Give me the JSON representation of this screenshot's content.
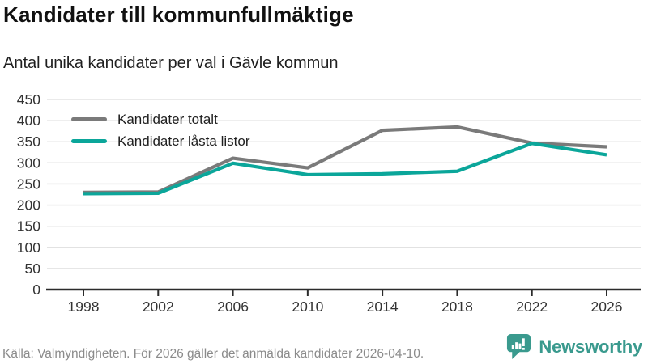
{
  "header": {
    "title": "Kandidater till kommunfullmäktige",
    "subtitle": "Antal unika kandidater per val i Gävle kommun"
  },
  "chart_data": {
    "type": "line",
    "title": "Kandidater till kommunfullmäktige",
    "subtitle": "Antal unika kandidater per val i Gävle kommun",
    "categories": [
      "1998",
      "2002",
      "2006",
      "2010",
      "2014",
      "2018",
      "2022",
      "2026"
    ],
    "series": [
      {
        "name": "Kandidater totalt",
        "color": "#7a7a7a",
        "values": [
          230,
          231,
          311,
          288,
          377,
          385,
          347,
          338
        ]
      },
      {
        "name": "Kandidater låsta listor",
        "color": "#0ba69a",
        "values": [
          227,
          228,
          299,
          272,
          274,
          280,
          346,
          319
        ]
      }
    ],
    "xlabel": "",
    "ylabel": "",
    "ylim": [
      0,
      450
    ],
    "yticks": [
      0,
      50,
      100,
      150,
      200,
      250,
      300,
      350,
      400,
      450
    ],
    "grid": true,
    "legend_position": "top-left-inside"
  },
  "colors": {
    "grid": "#dedede",
    "axis": "#2b2b2b",
    "tick_label": "#333333",
    "series_total": "#7a7a7a",
    "series_locked": "#0ba69a",
    "brand": "#3a9a8e",
    "source_text": "#8b8b8b"
  },
  "footer": {
    "source": "Källa: Valmyndigheten. För 2026 gäller det anmälda kandidater 2026-04-10.",
    "brand": "Newsworthy",
    "logo_icon": "newsworthy-speech-bubble-bar-chart-icon"
  }
}
